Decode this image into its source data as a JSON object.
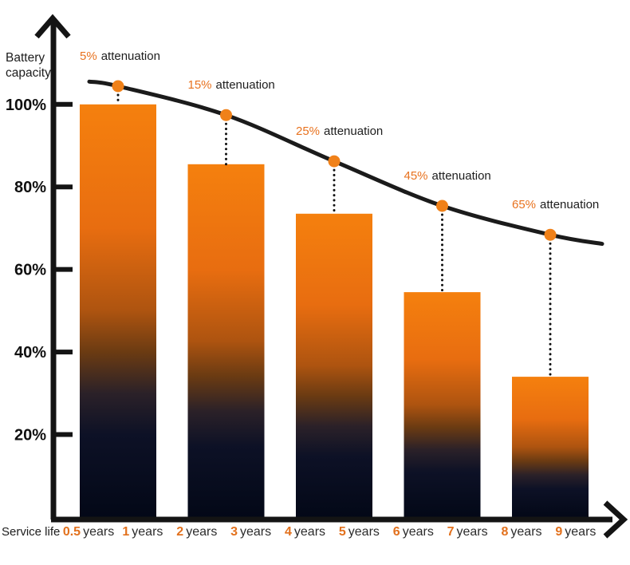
{
  "chart_data": {
    "type": "bar",
    "title": "",
    "ylabel": "Battery capacity",
    "ylabel_lines": [
      "Battery",
      "capacity"
    ],
    "xlabel": "Service life",
    "ylim": [
      0,
      110
    ],
    "grid": false,
    "legend": false,
    "y_ticks": [
      {
        "label": "100%",
        "pct": 100
      },
      {
        "label": "80%",
        "pct": 80
      },
      {
        "label": "60%",
        "pct": 60
      },
      {
        "label": "40%",
        "pct": 40
      },
      {
        "label": "20%",
        "pct": 20
      }
    ],
    "x_ticks": [
      {
        "value": "0.5",
        "unit": "years"
      },
      {
        "value": "1",
        "unit": "years"
      },
      {
        "value": "2",
        "unit": "years"
      },
      {
        "value": "3",
        "unit": "years"
      },
      {
        "value": "4",
        "unit": "years"
      },
      {
        "value": "5",
        "unit": "years"
      },
      {
        "value": "6",
        "unit": "years"
      },
      {
        "value": "7",
        "unit": "years"
      },
      {
        "value": "8",
        "unit": "years"
      },
      {
        "value": "9",
        "unit": "years"
      }
    ],
    "bars": [
      {
        "x_span": "0.5-1 years",
        "capacity_pct": 100
      },
      {
        "x_span": "2-3 years",
        "capacity_pct": 85.5
      },
      {
        "x_span": "4-5 years",
        "capacity_pct": 73.5
      },
      {
        "x_span": "6-7 years",
        "capacity_pct": 54.5
      },
      {
        "x_span": "8-9 years",
        "capacity_pct": 34
      }
    ],
    "attenuation_points": [
      {
        "value": "5%",
        "word": "attenuation",
        "attenuation_pct": 5,
        "curve_pct": 104.4
      },
      {
        "value": "15%",
        "word": "attenuation",
        "attenuation_pct": 15,
        "curve_pct": 97.4
      },
      {
        "value": "25%",
        "word": "attenuation",
        "attenuation_pct": 25,
        "curve_pct": 86.2
      },
      {
        "value": "45%",
        "word": "attenuation",
        "attenuation_pct": 45,
        "curve_pct": 75.4
      },
      {
        "value": "65%",
        "word": "attenuation",
        "attenuation_pct": 65,
        "curve_pct": 68.4
      }
    ],
    "curve": {
      "start_pct": 105.5,
      "end_pct": 66.2
    },
    "colors": {
      "accent_orange": "#E8721F",
      "number_orange": "#E2711D",
      "dot_orange": "#F08119",
      "curve_black": "#1B1B1B",
      "axis_black": "#141414",
      "text_dark": "#1D1D1D",
      "text_gray": "#2C2C2C",
      "background": "#FFFFFF",
      "bar_gradient": [
        {
          "offset": "0%",
          "color": "#F5800E"
        },
        {
          "offset": "30%",
          "color": "#E86D10"
        },
        {
          "offset": "50%",
          "color": "#AE5410"
        },
        {
          "offset": "60%",
          "color": "#6B3B12"
        },
        {
          "offset": "70%",
          "color": "#2B2128"
        },
        {
          "offset": "80%",
          "color": "#0D1126"
        },
        {
          "offset": "100%",
          "color": "#030817"
        }
      ]
    }
  }
}
